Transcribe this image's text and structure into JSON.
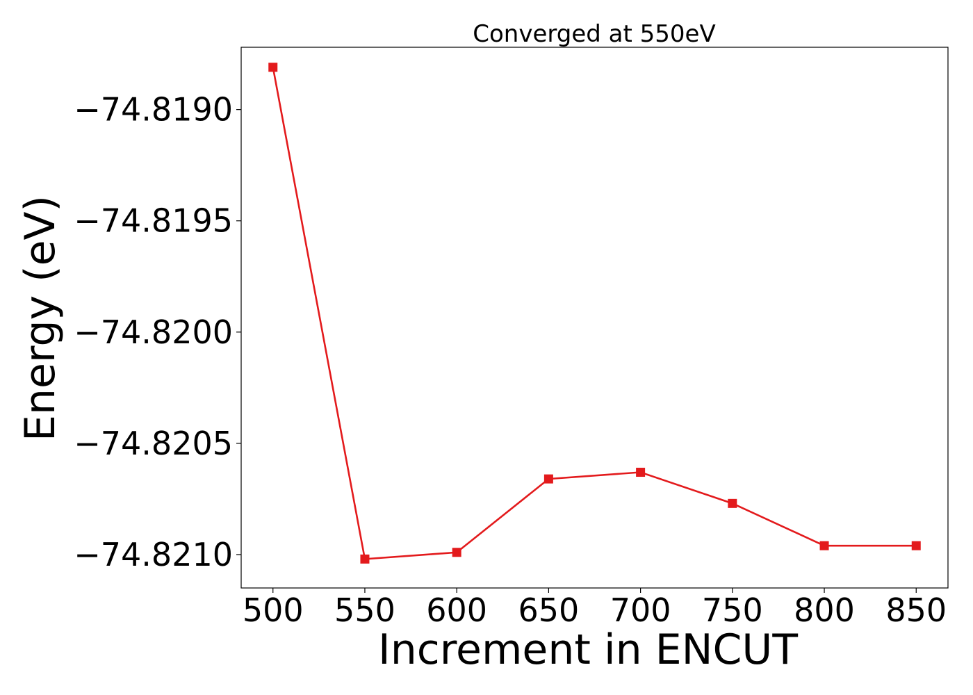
{
  "chart_data": {
    "type": "line",
    "title": "Converged at 550eV",
    "xlabel": "Increment in ENCUT",
    "ylabel": "Energy (eV)",
    "x": [
      500,
      550,
      600,
      650,
      700,
      750,
      800,
      850
    ],
    "series": [
      {
        "values": [
          -74.81881,
          -74.82102,
          -74.82099,
          -74.82066,
          -74.82063,
          -74.82077,
          -74.82096,
          -74.82096
        ],
        "color": "#e31a1c",
        "marker": "square"
      }
    ],
    "x_ticks": [
      500,
      550,
      600,
      650,
      700,
      750,
      800,
      850
    ],
    "x_tick_labels": [
      "500",
      "550",
      "600",
      "650",
      "700",
      "750",
      "800",
      "850"
    ],
    "y_ticks": [
      -74.819,
      -74.8195,
      -74.82,
      -74.8205,
      -74.821
    ],
    "y_tick_labels": [
      "−74.8190",
      "−74.8195",
      "−74.8200",
      "−74.8205",
      "−74.8210"
    ],
    "xlim": [
      482.7,
      867.3
    ],
    "ylim": [
      -74.82115,
      -74.81872
    ],
    "grid": false
  }
}
